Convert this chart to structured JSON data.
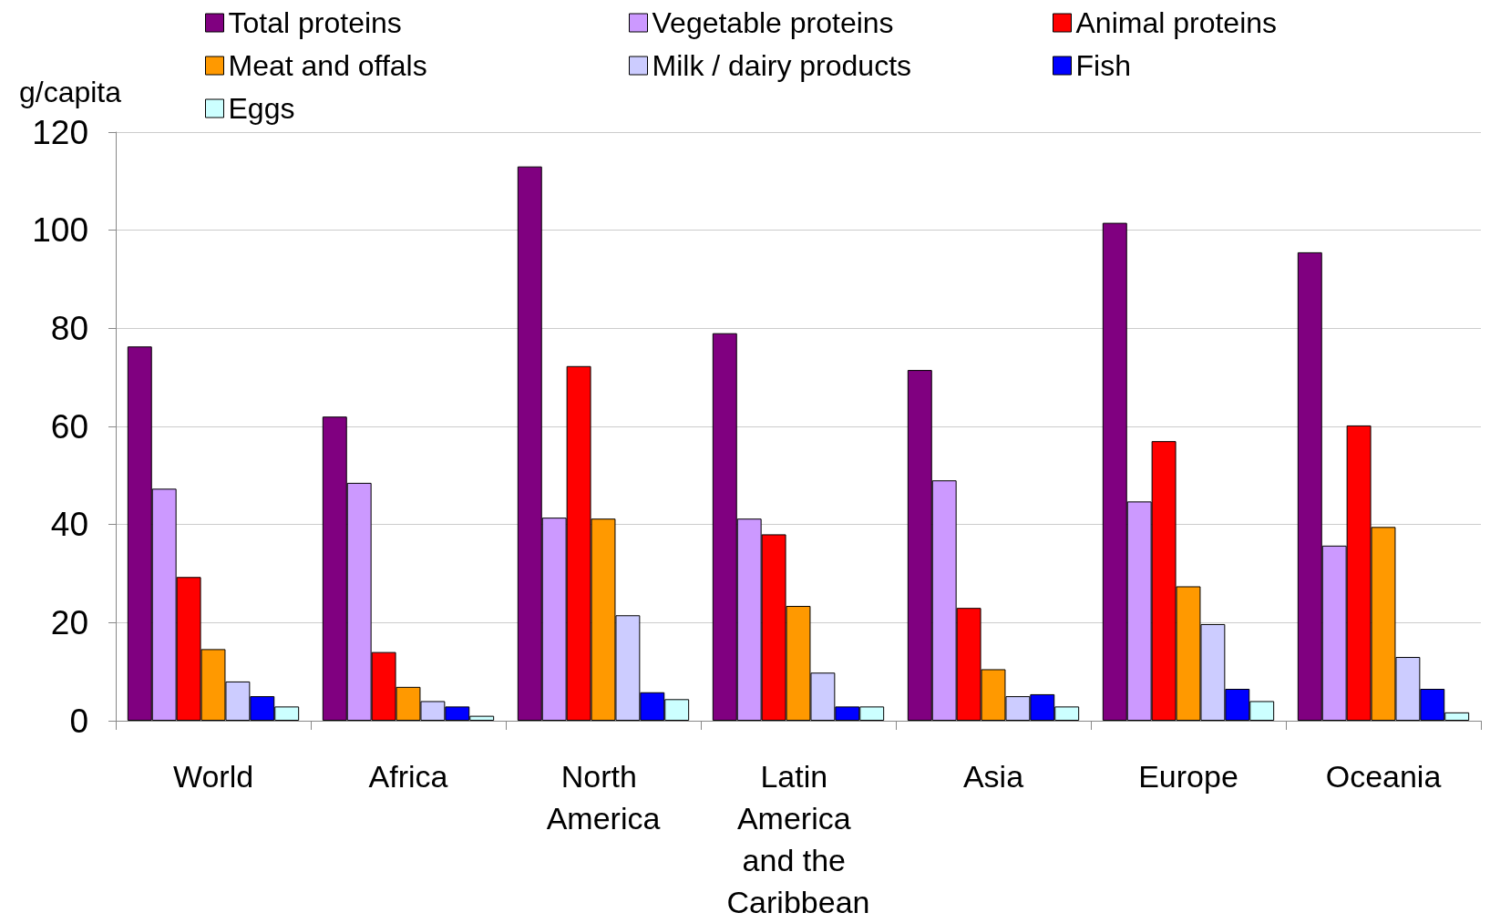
{
  "chart_data": {
    "type": "bar",
    "ylabel": "g/capita",
    "categories": [
      "World",
      "Africa",
      "North America",
      "Latin America and the Caribbean",
      "Asia",
      "Europe",
      "Oceania"
    ],
    "series": [
      {
        "name": "Total proteins",
        "color": "#800080",
        "values": [
          76.3,
          62,
          113,
          79,
          71.5,
          101.5,
          95.5
        ]
      },
      {
        "name": "Vegetable proteins",
        "color": "#cc99ff",
        "values": [
          47.3,
          48.5,
          41.4,
          41.2,
          49,
          44.7,
          35.7
        ]
      },
      {
        "name": "Animal proteins",
        "color": "#ff0000",
        "values": [
          29.3,
          14,
          72.3,
          38,
          23,
          57,
          60.2
        ]
      },
      {
        "name": "Meat and offals",
        "color": "#ff9900",
        "values": [
          14.6,
          6.9,
          41.2,
          23.4,
          10.5,
          27.4,
          39.5
        ]
      },
      {
        "name": "Milk / dairy products",
        "color": "#ccccff",
        "values": [
          8,
          4,
          21.5,
          9.8,
          5,
          19.7,
          13
        ]
      },
      {
        "name": "Fish",
        "color": "#0000ff",
        "values": [
          5,
          2.9,
          5.8,
          2.9,
          5.4,
          6.5,
          6.5
        ]
      },
      {
        "name": "Eggs",
        "color": "#ccffff",
        "values": [
          2.9,
          1,
          4.4,
          2.9,
          2.9,
          4,
          1.7
        ]
      }
    ],
    "ylim": [
      0,
      120
    ],
    "yticks": [
      0,
      20,
      40,
      60,
      80,
      100,
      120
    ],
    "grid": "y",
    "legend": "top"
  }
}
